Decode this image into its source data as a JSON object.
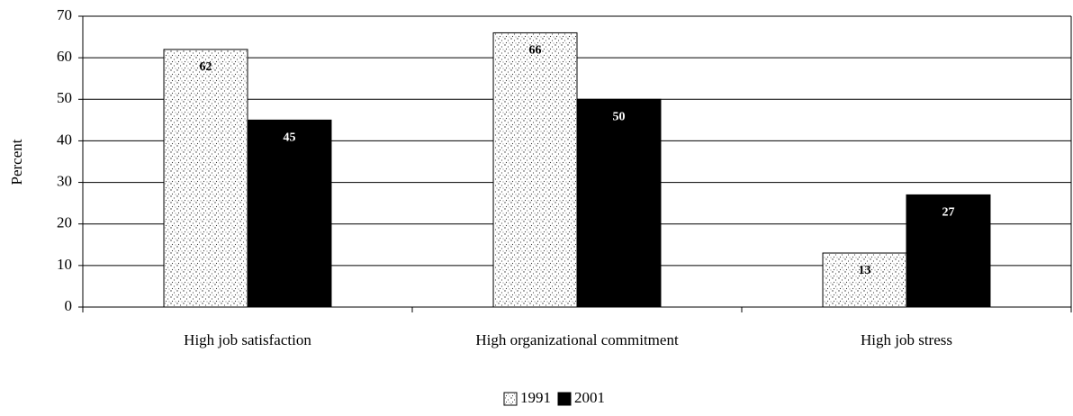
{
  "chart_data": {
    "type": "bar",
    "y_label": "Percent",
    "categories": [
      "High job satisfaction",
      "High organizational commitment",
      "High job stress"
    ],
    "series": [
      {
        "name": "1991",
        "color": "#ffffff",
        "values": [
          62,
          66,
          13
        ]
      },
      {
        "name": "2001",
        "color": "#000000",
        "values": [
          45,
          50,
          27
        ]
      }
    ],
    "ylim": [
      0,
      70
    ],
    "yticks": [
      0,
      10,
      20,
      30,
      40,
      50,
      60,
      70
    ],
    "grid": true,
    "legend": "bottom"
  }
}
